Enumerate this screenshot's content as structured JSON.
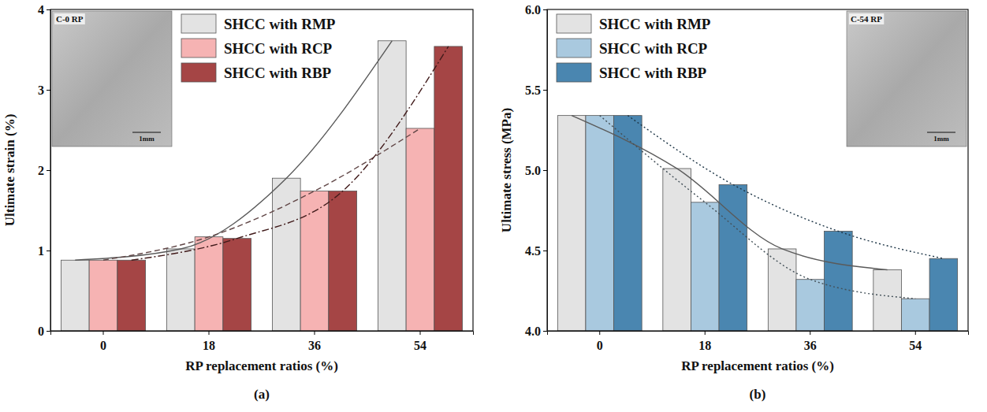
{
  "chart_data": [
    {
      "type": "bar",
      "title": "(a)",
      "x_label": "RP replacement ratios (%)",
      "y_label": "Ultimate strain (%)",
      "categories": [
        "0",
        "18",
        "36",
        "54"
      ],
      "series": [
        {
          "name": "SHCC with RMP",
          "color": "#e3e3e3",
          "line_style": "solid",
          "values": [
            0.88,
            1.02,
            1.9,
            3.61
          ]
        },
        {
          "name": "SHCC with RCP",
          "color": "#f6b3b3",
          "line_style": "dashed",
          "values": [
            0.88,
            1.17,
            1.74,
            2.52
          ]
        },
        {
          "name": "SHCC with RBP",
          "color": "#a54545",
          "line_style": "dashdot",
          "values": [
            0.88,
            1.15,
            1.74,
            3.54
          ]
        }
      ],
      "ylim": [
        0,
        4
      ],
      "yticks": [
        0,
        1,
        2,
        3,
        4
      ],
      "legend": "top",
      "annotations": [
        "C-0 RP",
        "1mm"
      ]
    },
    {
      "type": "bar",
      "title": "(b)",
      "x_label": "RP replacement ratios (%)",
      "y_label": "Ultimate stress (MPa)",
      "categories": [
        "0",
        "18",
        "36",
        "54"
      ],
      "series": [
        {
          "name": "SHCC with RMP",
          "color": "#e3e3e3",
          "line_style": "solid",
          "values": [
            5.34,
            5.01,
            4.51,
            4.38
          ]
        },
        {
          "name": "SHCC with RCP",
          "color": "#a9c9df",
          "line_style": "dotted",
          "values": [
            5.34,
            4.8,
            4.32,
            4.2
          ]
        },
        {
          "name": "SHCC with RBP",
          "color": "#4a86b0",
          "line_style": "dotted",
          "values": [
            5.34,
            4.91,
            4.62,
            4.45
          ]
        }
      ],
      "ylim": [
        4.0,
        6.0
      ],
      "yticks": [
        {
          "value": 4,
          "label": "4.0"
        },
        {
          "value": 4.5,
          "label": "4.5"
        },
        {
          "value": 5,
          "label": "5.0"
        },
        {
          "value": 5.5,
          "label": "5.5"
        },
        {
          "value": 6,
          "label": "6.0"
        }
      ],
      "legend": "top-left",
      "annotations": [
        "C-54 RP",
        "1mm"
      ]
    }
  ]
}
